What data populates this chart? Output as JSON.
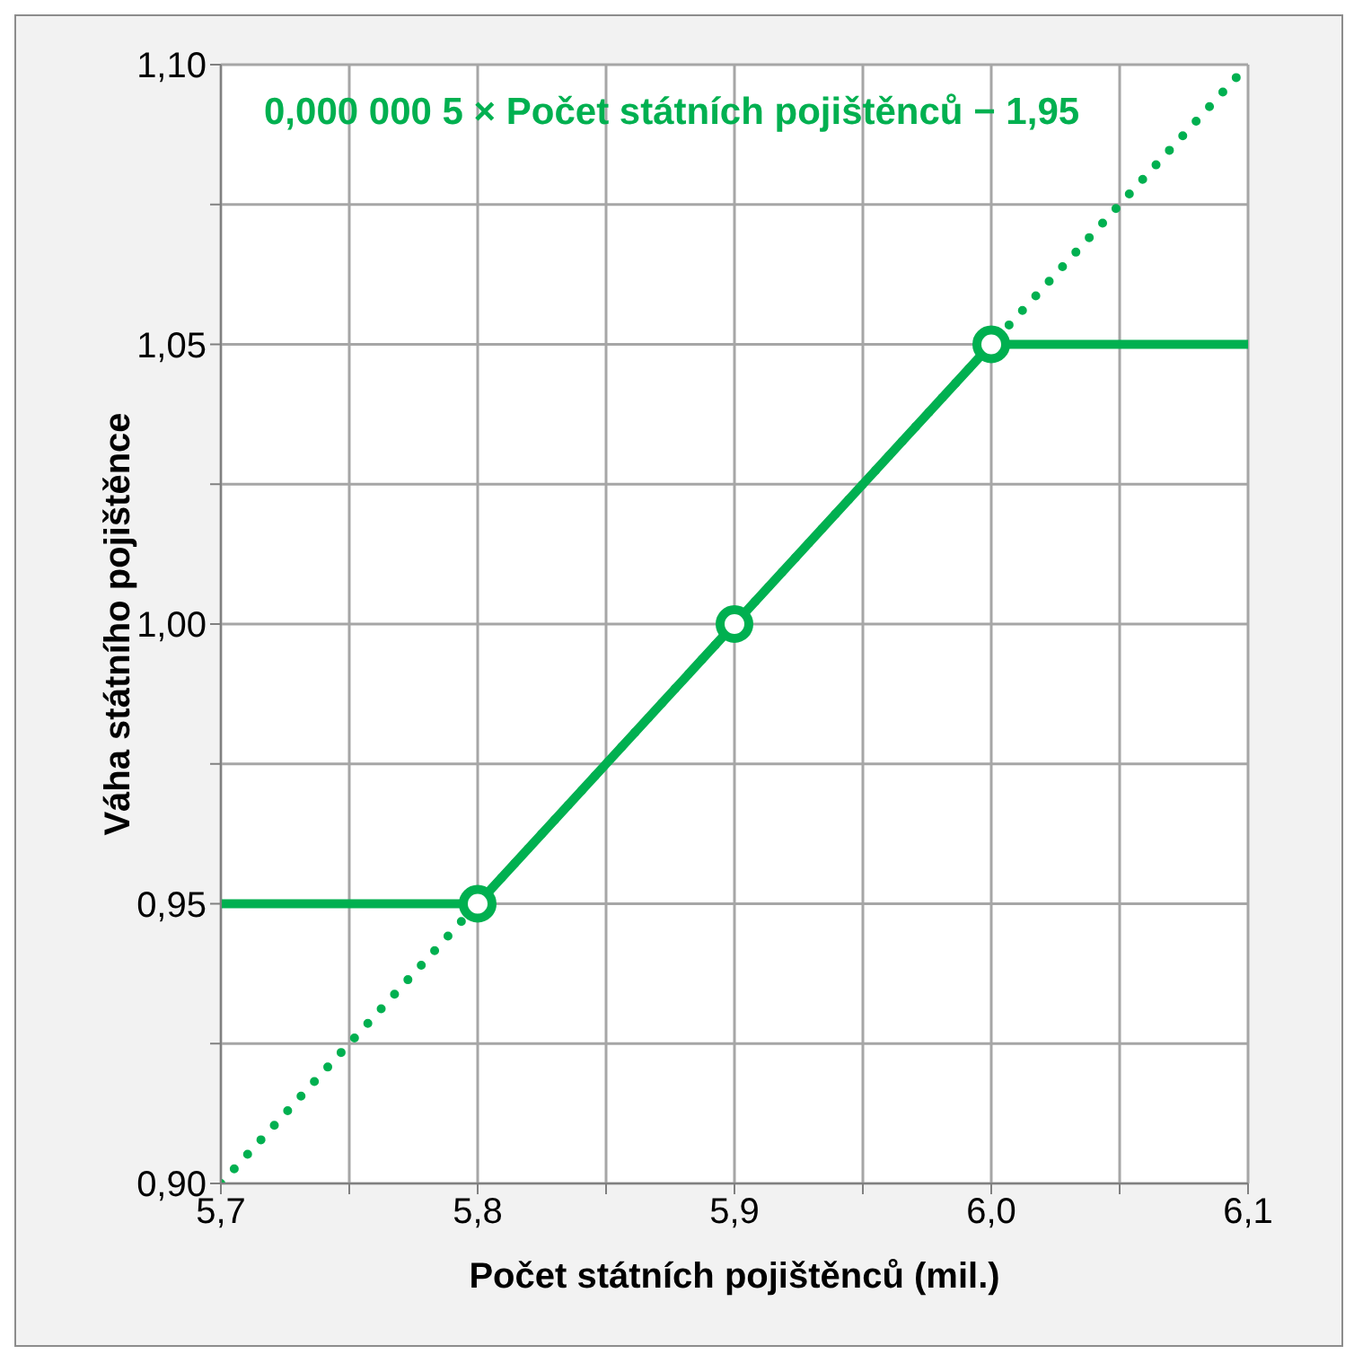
{
  "chart_data": {
    "type": "line",
    "xlabel": "Počet státních pojištěnců (mil.)",
    "ylabel": "Váha státního pojištěnce",
    "annotations": [
      "0,000 000 5 × Počet státních pojištěnců − 1,95"
    ],
    "xlim": [
      5.7,
      6.1
    ],
    "xticks": [
      {
        "value": 5.7,
        "label": "5,7"
      },
      {
        "value": 5.75,
        "label": null
      },
      {
        "value": 5.8,
        "label": "5,8"
      },
      {
        "value": 5.85,
        "label": null
      },
      {
        "value": 5.9,
        "label": "5,9"
      },
      {
        "value": 5.95,
        "label": null
      },
      {
        "value": 6.0,
        "label": "6,0"
      },
      {
        "value": 6.05,
        "label": null
      },
      {
        "value": 6.1,
        "label": "6,1"
      }
    ],
    "ylim": [
      0.9,
      1.1
    ],
    "yticks": [
      {
        "value": 0.9,
        "label": "0,90"
      },
      {
        "value": 0.925,
        "label": null
      },
      {
        "value": 0.95,
        "label": "0,95"
      },
      {
        "value": 0.975,
        "label": null
      },
      {
        "value": 1.0,
        "label": "1,00"
      },
      {
        "value": 1.025,
        "label": null
      },
      {
        "value": 1.05,
        "label": "1,05"
      },
      {
        "value": 1.075,
        "label": null
      },
      {
        "value": 1.1,
        "label": "1,10"
      }
    ],
    "grid": true,
    "legend": false,
    "series": [
      {
        "type": "line",
        "color": "#00b050",
        "line_style": "dotted",
        "marker": "none",
        "x": [
          5.7,
          6.1
        ],
        "values": [
          0.9,
          1.1
        ]
      },
      {
        "type": "line",
        "color": "#00b050",
        "line_style": "solid",
        "marker": "none",
        "x": [
          5.7,
          5.8,
          5.9,
          6.0,
          6.1
        ],
        "values": [
          0.95,
          0.95,
          1.0,
          1.05,
          1.05
        ]
      },
      {
        "type": "scatter",
        "color": "#00b050",
        "marker": "circle",
        "x": [
          5.8,
          5.9,
          6.0
        ],
        "values": [
          0.95,
          1.0,
          1.05
        ]
      }
    ]
  }
}
